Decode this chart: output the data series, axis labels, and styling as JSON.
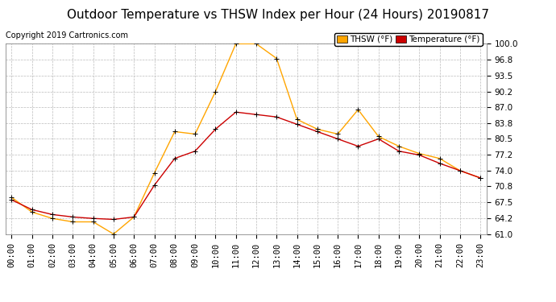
{
  "title": "Outdoor Temperature vs THSW Index per Hour (24 Hours) 20190817",
  "copyright": "Copyright 2019 Cartronics.com",
  "hours": [
    "00:00",
    "01:00",
    "02:00",
    "03:00",
    "04:00",
    "05:00",
    "06:00",
    "07:00",
    "08:00",
    "09:00",
    "10:00",
    "11:00",
    "12:00",
    "13:00",
    "14:00",
    "15:00",
    "16:00",
    "17:00",
    "18:00",
    "19:00",
    "20:00",
    "21:00",
    "22:00",
    "23:00"
  ],
  "thsw": [
    68.5,
    65.5,
    64.2,
    63.5,
    63.5,
    61.0,
    64.5,
    73.5,
    82.0,
    81.5,
    90.2,
    100.0,
    100.0,
    97.0,
    84.5,
    82.5,
    81.5,
    86.5,
    81.0,
    79.0,
    77.5,
    76.5,
    74.0,
    72.5
  ],
  "temp": [
    68.0,
    66.0,
    65.0,
    64.5,
    64.2,
    64.0,
    64.5,
    71.0,
    76.5,
    78.0,
    82.5,
    86.0,
    85.5,
    85.0,
    83.5,
    82.0,
    80.5,
    79.0,
    80.5,
    78.0,
    77.2,
    75.5,
    74.0,
    72.5
  ],
  "thsw_color": "#FFA500",
  "temp_color": "#CC0000",
  "bg_color": "#FFFFFF",
  "plot_bg_color": "#FFFFFF",
  "grid_color": "#BBBBBB",
  "ylim": [
    61.0,
    100.0
  ],
  "yticks": [
    61.0,
    64.2,
    67.5,
    70.8,
    74.0,
    77.2,
    80.5,
    83.8,
    87.0,
    90.2,
    93.5,
    96.8,
    100.0
  ],
  "legend_thsw_label": "THSW (°F)",
  "legend_temp_label": "Temperature (°F)",
  "title_fontsize": 11,
  "tick_fontsize": 7.5,
  "copyright_fontsize": 7
}
